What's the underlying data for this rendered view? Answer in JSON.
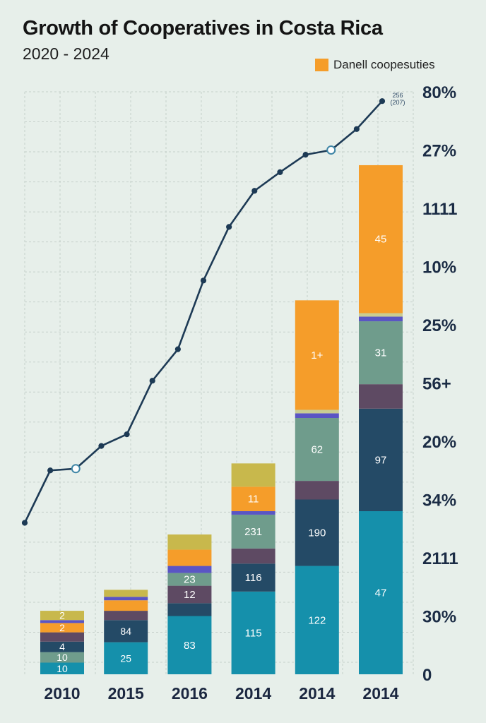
{
  "title": "Growth of Cooperatives in Costa Rica",
  "subtitle": "2020 - 2024",
  "legend": {
    "label": "Danell coopesuties",
    "color": "#f59d2a"
  },
  "chart_data": {
    "type": "bar",
    "stacked": true,
    "categories": [
      "2010",
      "2015",
      "2016",
      "2014",
      "2014",
      "2014"
    ],
    "ylim": [
      0,
      100
    ],
    "grid": true,
    "legend_position": "top-right",
    "segment_colors": [
      "#1590ab",
      "#244a66",
      "#5e4a63",
      "#6f9c8c",
      "#5a55c4",
      "#c9cd93",
      "#f59d2a",
      "#c8b84c"
    ],
    "stacks": [
      [
        {
          "value": 2.0,
          "label": "10",
          "color": "#1590ab"
        },
        {
          "value": 1.8,
          "label": "10",
          "color": "#6f9c8c"
        },
        {
          "value": 1.8,
          "label": "4",
          "color": "#244a66"
        },
        {
          "value": 1.6,
          "label": "",
          "color": "#5e4a63"
        },
        {
          "value": 1.6,
          "label": "2",
          "color": "#f59d2a"
        },
        {
          "value": 0.5,
          "label": "",
          "color": "#5a55c4"
        },
        {
          "value": 1.6,
          "label": "2",
          "color": "#c8b84c"
        }
      ],
      [
        {
          "value": 5.5,
          "label": "25",
          "color": "#1590ab"
        },
        {
          "value": 3.8,
          "label": "84",
          "color": "#244a66"
        },
        {
          "value": 1.6,
          "label": "",
          "color": "#5e4a63"
        },
        {
          "value": 1.8,
          "label": "",
          "color": "#f59d2a"
        },
        {
          "value": 0.6,
          "label": "",
          "color": "#5a55c4"
        },
        {
          "value": 1.2,
          "label": "",
          "color": "#c8b84c"
        }
      ],
      [
        {
          "value": 10.0,
          "label": "83",
          "color": "#1590ab"
        },
        {
          "value": 2.2,
          "label": "",
          "color": "#244a66"
        },
        {
          "value": 3.0,
          "label": "12",
          "color": "#5e4a63"
        },
        {
          "value": 2.2,
          "label": "23",
          "color": "#6f9c8c"
        },
        {
          "value": 1.2,
          "label": "",
          "color": "#5a55c4"
        },
        {
          "value": 2.8,
          "label": "",
          "color": "#f59d2a"
        },
        {
          "value": 2.6,
          "label": "",
          "color": "#c8b84c"
        }
      ],
      [
        {
          "value": 14.2,
          "label": "115",
          "color": "#1590ab"
        },
        {
          "value": 4.8,
          "label": "116",
          "color": "#244a66"
        },
        {
          "value": 2.6,
          "label": "",
          "color": "#5e4a63"
        },
        {
          "value": 5.8,
          "label": "231",
          "color": "#6f9c8c"
        },
        {
          "value": 0.6,
          "label": "",
          "color": "#5a55c4"
        },
        {
          "value": 4.2,
          "label": "11",
          "color": "#f59d2a"
        },
        {
          "value": 4.0,
          "label": "",
          "color": "#c8b84c"
        }
      ],
      [
        {
          "value": 18.6,
          "label": "122",
          "color": "#1590ab"
        },
        {
          "value": 11.4,
          "label": "190",
          "color": "#244a66"
        },
        {
          "value": 3.2,
          "label": "",
          "color": "#5e4a63"
        },
        {
          "value": 10.8,
          "label": "62",
          "color": "#6f9c8c"
        },
        {
          "value": 0.8,
          "label": "",
          "color": "#5a55c4"
        },
        {
          "value": 0.6,
          "label": "",
          "color": "#c9cd93"
        },
        {
          "value": 18.8,
          "label": "1+",
          "color": "#f59d2a"
        }
      ],
      [
        {
          "value": 28.0,
          "label": "47",
          "color": "#1590ab"
        },
        {
          "value": 17.6,
          "label": "97",
          "color": "#244a66"
        },
        {
          "value": 4.2,
          "label": "",
          "color": "#5e4a63"
        },
        {
          "value": 10.8,
          "label": "31",
          "color": "#6f9c8c"
        },
        {
          "value": 0.8,
          "label": "",
          "color": "#5a55c4"
        },
        {
          "value": 0.6,
          "label": "",
          "color": "#c9cd93"
        },
        {
          "value": 25.4,
          "label": "45",
          "color": "#f59d2a"
        }
      ]
    ],
    "line": {
      "color": "#1d3a55",
      "values": [
        26,
        35,
        35.3,
        39.2,
        41.2,
        50.4,
        55.8,
        67.6,
        76.8,
        83,
        86.2,
        89.2,
        90,
        93.6,
        98.4
      ],
      "highlighted_points": [
        2,
        12
      ],
      "annotation": [
        "256",
        "(207)"
      ]
    },
    "right_axis_labels": [
      "0",
      "30%",
      "2111",
      "34%",
      "20%",
      "56+",
      "25%",
      "10%",
      "1111",
      "27%",
      "80%"
    ],
    "right_axis_values": [
      0,
      10,
      20,
      30,
      40,
      50,
      60,
      70,
      80,
      90,
      100
    ]
  }
}
